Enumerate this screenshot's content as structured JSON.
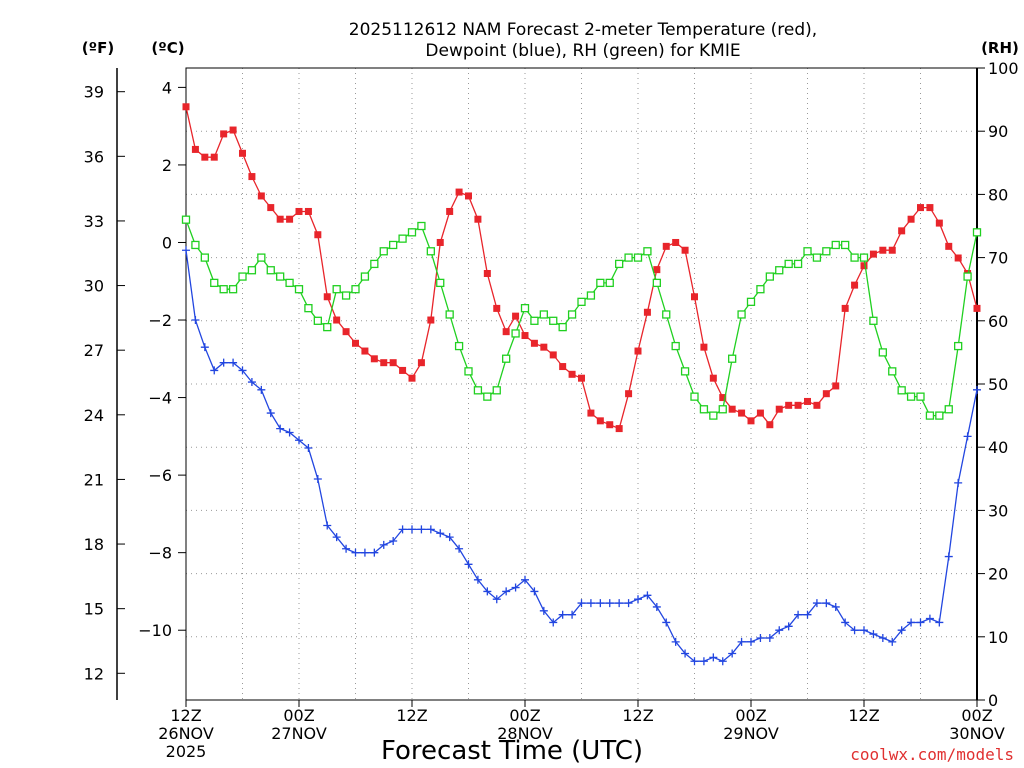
{
  "chart_data": {
    "type": "line",
    "title_lines": [
      "2025112612 NAM Forecast 2-meter Temperature (red),",
      "Dewpoint (blue), RH (green) for KMIE"
    ],
    "xlabel": "Forecast Time (UTC)",
    "credit": "coolwx.com/models",
    "units": {
      "fahrenheit": "(ºF)",
      "celsius": "(ºC)",
      "rh": "(RH)"
    },
    "x_range_hours": [
      0,
      84
    ],
    "x_ticks": [
      {
        "hour": 0,
        "lines": [
          "12Z",
          "26NOV",
          "2025"
        ]
      },
      {
        "hour": 12,
        "lines": [
          "00Z",
          "27NOV"
        ]
      },
      {
        "hour": 24,
        "lines": [
          "12Z"
        ]
      },
      {
        "hour": 36,
        "lines": [
          "00Z",
          "28NOV"
        ]
      },
      {
        "hour": 48,
        "lines": [
          "12Z"
        ]
      },
      {
        "hour": 60,
        "lines": [
          "00Z",
          "29NOV"
        ]
      },
      {
        "hour": 72,
        "lines": [
          "12Z"
        ]
      },
      {
        "hour": 84,
        "lines": [
          "00Z",
          "30NOV"
        ]
      }
    ],
    "y_celsius_range": [
      -11.8,
      4.5
    ],
    "y_celsius_ticks": [
      "4",
      "2",
      "0",
      "−2",
      "−4",
      "−6",
      "−8",
      "−10"
    ],
    "y_celsius_tick_values": [
      4,
      2,
      0,
      -2,
      -4,
      -6,
      -8,
      -10
    ],
    "y_fahrenheit_ticks": [
      "39",
      "36",
      "33",
      "30",
      "27",
      "24",
      "21",
      "18",
      "15",
      "12"
    ],
    "y_fahrenheit_tick_values": [
      39,
      36,
      33,
      30,
      27,
      24,
      21,
      18,
      15,
      12
    ],
    "y_rh_range": [
      0,
      100
    ],
    "y_rh_ticks": [
      "100",
      "90",
      "80",
      "70",
      "60",
      "50",
      "40",
      "30",
      "20",
      "10",
      "0"
    ],
    "y_rh_tick_values": [
      100,
      90,
      80,
      70,
      60,
      50,
      40,
      30,
      20,
      10,
      0
    ],
    "grid": true,
    "series": [
      {
        "name": "2-meter Temperature",
        "unit": "°C",
        "color": "#e8252b",
        "marker": "filled-square",
        "hours": [
          0,
          1,
          2,
          3,
          4,
          5,
          6,
          7,
          8,
          9,
          10,
          11,
          12,
          13,
          14,
          15,
          16,
          17,
          18,
          19,
          20,
          21,
          22,
          23,
          24,
          25,
          26,
          27,
          28,
          29,
          30,
          31,
          32,
          33,
          34,
          35,
          36,
          37,
          38,
          39,
          40,
          41,
          42,
          43,
          44,
          45,
          46,
          47,
          48,
          49,
          50,
          51,
          52,
          53,
          54,
          55,
          56,
          57,
          58,
          59,
          60,
          61,
          62,
          63,
          64,
          65,
          66,
          67,
          68,
          69,
          70,
          71,
          72,
          73,
          74,
          75,
          76,
          77,
          78,
          79,
          80,
          81,
          82,
          83,
          84
        ],
        "values": [
          3.5,
          2.4,
          2.2,
          2.2,
          2.8,
          2.9,
          2.3,
          1.7,
          1.2,
          0.9,
          0.6,
          0.6,
          0.8,
          0.8,
          0.2,
          -1.4,
          -2.0,
          -2.3,
          -2.6,
          -2.8,
          -3.0,
          -3.1,
          -3.1,
          -3.3,
          -3.5,
          -3.1,
          -2.0,
          0.0,
          0.8,
          1.3,
          1.2,
          0.6,
          -0.8,
          -1.7,
          -2.3,
          -1.9,
          -2.4,
          -2.6,
          -2.7,
          -2.9,
          -3.2,
          -3.4,
          -3.5,
          -4.4,
          -4.6,
          -4.7,
          -4.8,
          -3.9,
          -2.8,
          -1.8,
          -0.7,
          -0.1,
          0.0,
          -0.2,
          -1.4,
          -2.7,
          -3.5,
          -4.0,
          -4.3,
          -4.4,
          -4.6,
          -4.4,
          -4.7,
          -4.3,
          -4.2,
          -4.2,
          -4.1,
          -4.2,
          -3.9,
          -3.7,
          -1.7,
          -1.1,
          -0.6,
          -0.3,
          -0.2,
          -0.2,
          0.3,
          0.6,
          0.9,
          0.9,
          0.5,
          -0.1,
          -0.4,
          -0.8,
          -1.7
        ]
      },
      {
        "name": "Dewpoint",
        "unit": "°C",
        "color": "#2246e0",
        "marker": "plus",
        "hours": [
          0,
          1,
          2,
          3,
          4,
          5,
          6,
          7,
          8,
          9,
          10,
          11,
          12,
          13,
          14,
          15,
          16,
          17,
          18,
          19,
          20,
          21,
          22,
          23,
          24,
          25,
          26,
          27,
          28,
          29,
          30,
          31,
          32,
          33,
          34,
          35,
          36,
          37,
          38,
          39,
          40,
          41,
          42,
          43,
          44,
          45,
          46,
          47,
          48,
          49,
          50,
          51,
          52,
          53,
          54,
          55,
          56,
          57,
          58,
          59,
          60,
          61,
          62,
          63,
          64,
          65,
          66,
          67,
          68,
          69,
          70,
          71,
          72,
          73,
          74,
          75,
          76,
          77,
          78,
          79,
          80,
          81,
          82,
          83,
          84
        ],
        "values": [
          -0.2,
          -2.0,
          -2.7,
          -3.3,
          -3.1,
          -3.1,
          -3.3,
          -3.6,
          -3.8,
          -4.4,
          -4.8,
          -4.9,
          -5.1,
          -5.3,
          -6.1,
          -7.3,
          -7.6,
          -7.9,
          -8.0,
          -8.0,
          -8.0,
          -7.8,
          -7.7,
          -7.4,
          -7.4,
          -7.4,
          -7.4,
          -7.5,
          -7.6,
          -7.9,
          -8.3,
          -8.7,
          -9.0,
          -9.2,
          -9.0,
          -8.9,
          -8.7,
          -9.0,
          -9.5,
          -9.8,
          -9.6,
          -9.6,
          -9.3,
          -9.3,
          -9.3,
          -9.3,
          -9.3,
          -9.3,
          -9.2,
          -9.1,
          -9.4,
          -9.8,
          -10.3,
          -10.6,
          -10.8,
          -10.8,
          -10.7,
          -10.8,
          -10.6,
          -10.3,
          -10.3,
          -10.2,
          -10.2,
          -10.0,
          -9.9,
          -9.6,
          -9.6,
          -9.3,
          -9.3,
          -9.4,
          -9.8,
          -10.0,
          -10.0,
          -10.1,
          -10.2,
          -10.3,
          -10.0,
          -9.8,
          -9.8,
          -9.7,
          -9.8,
          -8.1,
          -6.2,
          -5.0,
          -3.8
        ]
      },
      {
        "name": "RH",
        "unit": "%",
        "color": "#20d020",
        "marker": "open-square",
        "hours": [
          0,
          1,
          2,
          3,
          4,
          5,
          6,
          7,
          8,
          9,
          10,
          11,
          12,
          13,
          14,
          15,
          16,
          17,
          18,
          19,
          20,
          21,
          22,
          23,
          24,
          25,
          26,
          27,
          28,
          29,
          30,
          31,
          32,
          33,
          34,
          35,
          36,
          37,
          38,
          39,
          40,
          41,
          42,
          43,
          44,
          45,
          46,
          47,
          48,
          49,
          50,
          51,
          52,
          53,
          54,
          55,
          56,
          57,
          58,
          59,
          60,
          61,
          62,
          63,
          64,
          65,
          66,
          67,
          68,
          69,
          70,
          71,
          72,
          73,
          74,
          75,
          76,
          77,
          78,
          79,
          80,
          81,
          82,
          83,
          84
        ],
        "values": [
          76,
          72,
          70,
          66,
          65,
          65,
          67,
          68,
          70,
          68,
          67,
          66,
          65,
          62,
          60,
          59,
          65,
          64,
          65,
          67,
          69,
          71,
          72,
          73,
          74,
          75,
          71,
          66,
          61,
          56,
          52,
          49,
          48,
          49,
          54,
          58,
          62,
          60,
          61,
          60,
          59,
          61,
          63,
          64,
          66,
          66,
          69,
          70,
          70,
          71,
          66,
          61,
          56,
          52,
          48,
          46,
          45,
          46,
          54,
          61,
          63,
          65,
          67,
          68,
          69,
          69,
          71,
          70,
          71,
          72,
          72,
          70,
          70,
          60,
          55,
          52,
          49,
          48,
          48,
          45,
          45,
          46,
          56,
          67,
          74
        ]
      }
    ]
  }
}
